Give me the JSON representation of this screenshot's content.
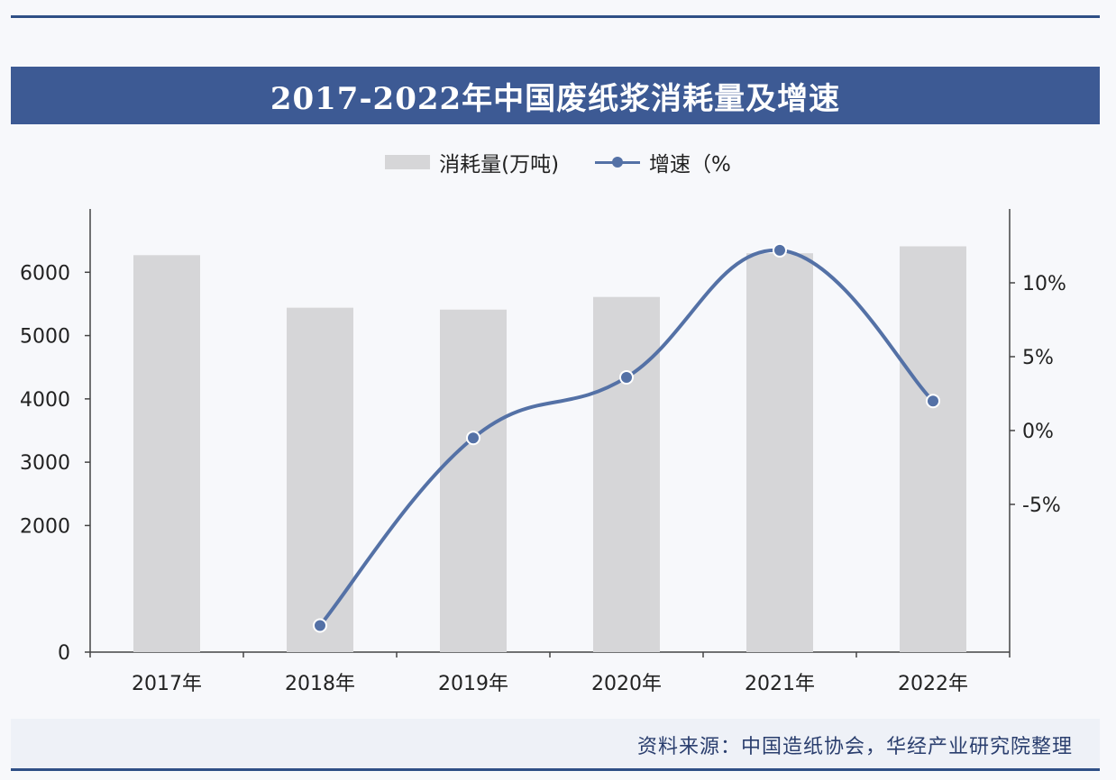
{
  "title": "2017-2022年中国废纸浆消耗量及增速",
  "legend": {
    "bar_label": "消耗量(万吨)",
    "line_label": "增速（%"
  },
  "source": "资料来源：中国造纸协会，华经产业研究院整理",
  "colors": {
    "title_bg": "#3d5a94",
    "bar": "#d6d6d8",
    "line": "#5471a6",
    "rule": "#2f4f86"
  },
  "chart_data": {
    "type": "bar+line",
    "categories": [
      "2017年",
      "2018年",
      "2019年",
      "2020年",
      "2021年",
      "2022年"
    ],
    "series": [
      {
        "name": "消耗量(万吨)",
        "type": "bar",
        "axis": "left",
        "values": [
          6270,
          5440,
          5410,
          5610,
          6300,
          6410
        ]
      },
      {
        "name": "增速（%",
        "type": "line",
        "axis": "right",
        "values": [
          null,
          -13.2,
          -0.5,
          3.6,
          12.2,
          2.0
        ]
      }
    ],
    "y_left": {
      "min": 0,
      "max": 7000,
      "ticks": [
        0,
        2000,
        3000,
        4000,
        5000,
        6000
      ],
      "tick_labels": [
        "0",
        "2000",
        "3000",
        "4000",
        "5000",
        "6000"
      ]
    },
    "y_right": {
      "min": -15,
      "max": 15,
      "ticks": [
        -5,
        0,
        5,
        10
      ],
      "tick_labels": [
        "-5%",
        "0%",
        "5%",
        "10%"
      ]
    },
    "grid": false,
    "legend_position": "top-center"
  }
}
